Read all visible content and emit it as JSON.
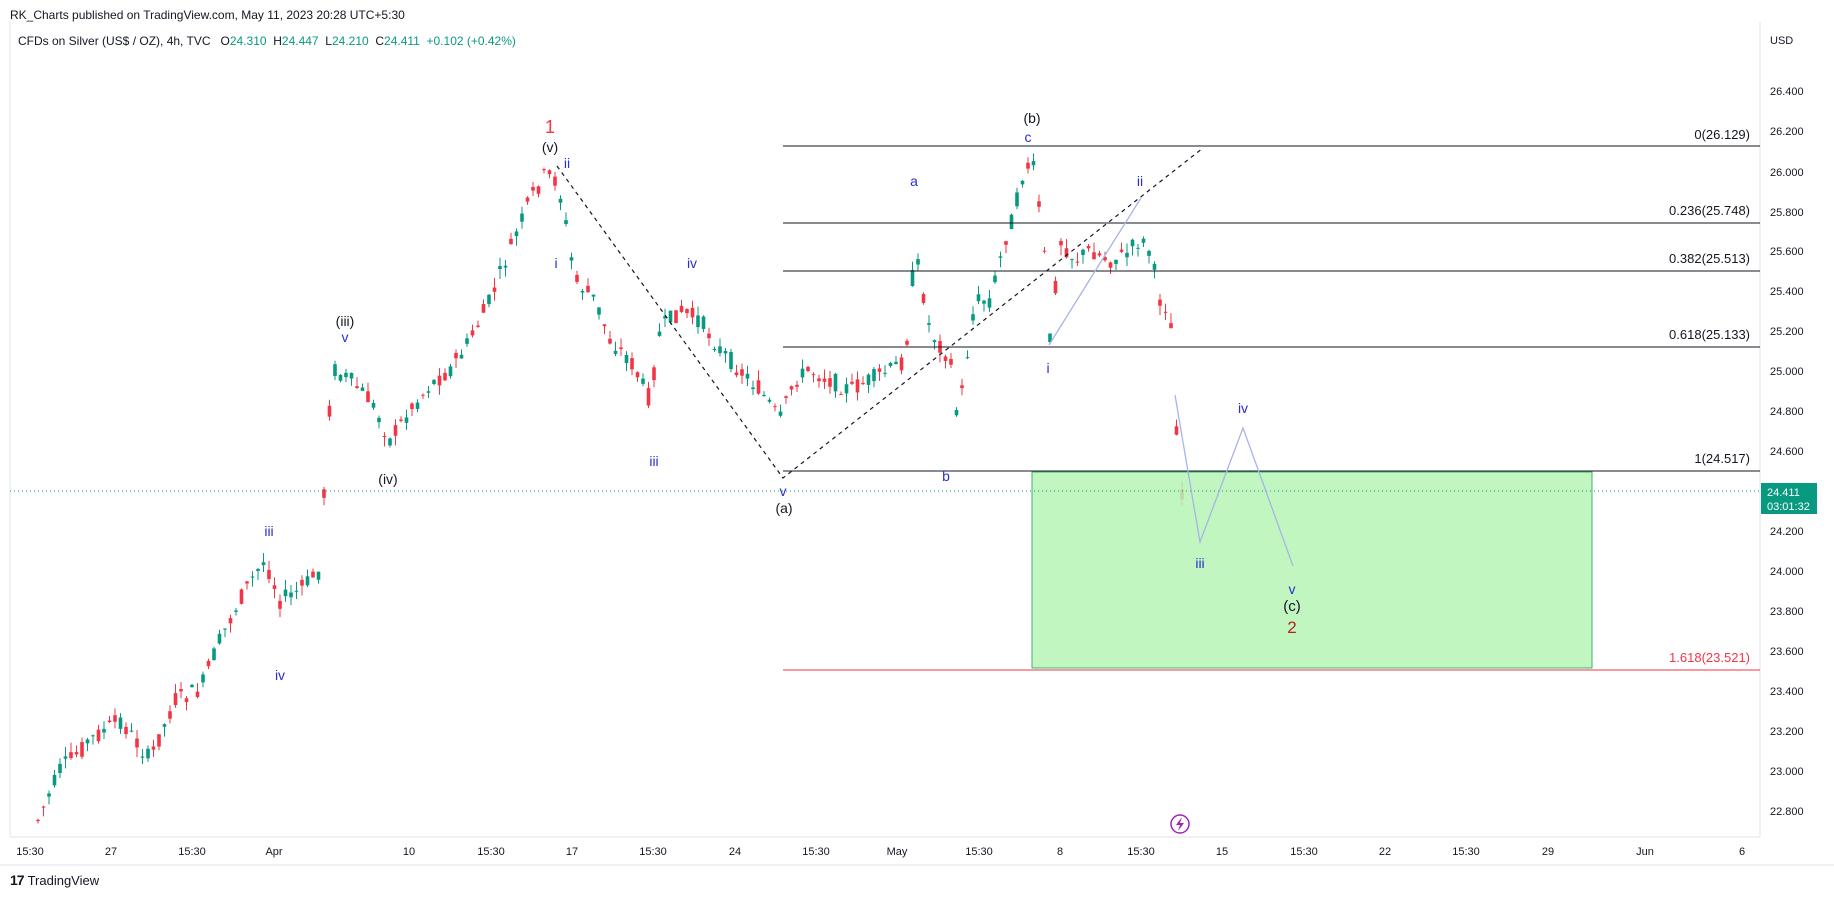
{
  "header": {
    "published": "RK_Charts published on TradingView.com, May 11, 2023 20:28 UTC+5:30"
  },
  "legend": {
    "symbol": "CFDs on Silver (US$ / OZ), 4h, TVC",
    "o_label": "O",
    "o": "24.310",
    "h_label": "H",
    "h": "24.447",
    "l_label": "L",
    "l": "24.210",
    "c_label": "C",
    "c": "24.411",
    "change": "+0.102 (+0.42%)"
  },
  "price_axis": {
    "currency": "USD",
    "ticks": [
      "26.400",
      "26.200",
      "26.000",
      "25.800",
      "25.600",
      "25.400",
      "25.200",
      "25.000",
      "24.800",
      "24.600",
      "24.200",
      "24.000",
      "23.800",
      "23.600",
      "23.400",
      "23.200",
      "23.000",
      "22.800"
    ],
    "current_price": "24.411",
    "countdown": "03:01:32"
  },
  "time_axis": {
    "ticks": [
      "15:30",
      "27",
      "15:30",
      "Apr",
      "10",
      "15:30",
      "17",
      "15:30",
      "24",
      "15:30",
      "May",
      "15:30",
      "8",
      "15:30",
      "15",
      "15:30",
      "22",
      "15:30",
      "29",
      "Jun",
      "6"
    ]
  },
  "fib_levels": [
    {
      "label": "0(26.129)",
      "color": "#131722"
    },
    {
      "label": "0.236(25.748)",
      "color": "#131722"
    },
    {
      "label": "0.382(25.513)",
      "color": "#131722"
    },
    {
      "label": "0.618(25.133)",
      "color": "#131722"
    },
    {
      "label": "1(24.517)",
      "color": "#131722"
    },
    {
      "label": "1.618(23.521)",
      "color": "#f23645"
    }
  ],
  "wave_labels": [
    {
      "text": "1",
      "color": "#f23645"
    },
    {
      "text": "(v)",
      "color": "#131722"
    },
    {
      "text": "ii",
      "color": "#2a2ecd"
    },
    {
      "text": "i",
      "color": "#2a2ecd"
    },
    {
      "text": "(iii)",
      "color": "#131722"
    },
    {
      "text": "v",
      "color": "#2a2ecd"
    },
    {
      "text": "(iv)",
      "color": "#131722"
    },
    {
      "text": "iii",
      "color": "#2a2ecd"
    },
    {
      "text": "iv",
      "color": "#2a2ecd"
    },
    {
      "text": "iv",
      "color": "#2a2ecd"
    },
    {
      "text": "iii",
      "color": "#2a2ecd"
    },
    {
      "text": "v",
      "color": "#2a2ecd"
    },
    {
      "text": "(a)",
      "color": "#131722"
    },
    {
      "text": "a",
      "color": "#2a2ecd"
    },
    {
      "text": "b",
      "color": "#2a2ecd"
    },
    {
      "text": "(b)",
      "color": "#131722"
    },
    {
      "text": "c",
      "color": "#2a2ecd"
    },
    {
      "text": "i",
      "color": "#2a2ecd"
    },
    {
      "text": "ii",
      "color": "#2a2ecd"
    },
    {
      "text": "iii",
      "color": "#2a2ecd"
    },
    {
      "text": "iv",
      "color": "#2a2ecd"
    },
    {
      "text": "v",
      "color": "#2a2ecd"
    },
    {
      "text": "(c)",
      "color": "#131722"
    },
    {
      "text": "2",
      "color": "#b22222"
    }
  ],
  "footer": {
    "brand": "TradingView",
    "logo_glyph": "17"
  },
  "colors": {
    "up": "#089981",
    "down": "#f23645",
    "zone": "#b6f5b6",
    "projection": "#a9b4e6"
  }
}
